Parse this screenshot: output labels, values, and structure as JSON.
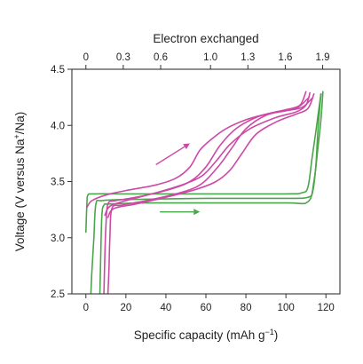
{
  "chart_data": {
    "type": "line",
    "x_axis": {
      "title_text": "Specific capacity (mAh g",
      "title_sup": "−1",
      "title_close": ")",
      "range": [
        -7,
        127
      ],
      "ticks": [
        0,
        20,
        40,
        60,
        80,
        100,
        120
      ],
      "tick_labels": [
        "0",
        "20",
        "40",
        "60",
        "80",
        "100",
        "120"
      ]
    },
    "x2_axis": {
      "title": "Electron exchanged",
      "ticks": [
        0,
        0.3,
        0.6,
        1.0,
        1.3,
        1.6,
        1.9
      ],
      "tick_labels": [
        "0",
        "0.3",
        "0.6",
        "1.0",
        "1.3",
        "1.6",
        "1.9"
      ],
      "capacity_per_electron": 62.3
    },
    "y_axis": {
      "title_text": "Voltage (V versus Na",
      "title_sup": "+",
      "title_close": "/Na)",
      "range": [
        2.5,
        4.5
      ],
      "ticks": [
        2.5,
        3.0,
        3.5,
        4.0,
        4.5
      ],
      "tick_labels": [
        "2.5",
        "3.0",
        "3.5",
        "4.0",
        "4.5"
      ]
    },
    "colors": {
      "green": "#4aa64a",
      "magenta": "#cc4aa6"
    },
    "series": [
      {
        "color": "green",
        "points": [
          [
            0,
            3.05
          ],
          [
            0.5,
            3.3
          ],
          [
            1,
            3.38
          ],
          [
            4,
            3.39
          ],
          [
            20,
            3.39
          ],
          [
            60,
            3.39
          ],
          [
            100,
            3.39
          ],
          [
            108,
            3.4
          ],
          [
            111,
            3.45
          ],
          [
            113,
            3.7
          ],
          [
            115,
            3.95
          ],
          [
            116.5,
            4.15
          ],
          [
            117.5,
            4.28
          ]
        ]
      },
      {
        "color": "green",
        "points": [
          [
            117.5,
            4.28
          ],
          [
            116,
            3.95
          ],
          [
            115,
            3.65
          ],
          [
            113.5,
            3.42
          ],
          [
            111,
            3.36
          ],
          [
            100,
            3.35
          ],
          [
            60,
            3.35
          ],
          [
            20,
            3.34
          ],
          [
            8,
            3.33
          ],
          [
            5,
            3.3
          ],
          [
            4,
            3.0
          ],
          [
            3,
            2.7
          ],
          [
            2.5,
            2.5
          ]
        ]
      },
      {
        "color": "green",
        "points": [
          [
            7,
            2.5
          ],
          [
            7.5,
            2.9
          ],
          [
            8,
            3.2
          ],
          [
            9,
            3.29
          ],
          [
            12,
            3.3
          ],
          [
            30,
            3.31
          ],
          [
            60,
            3.31
          ],
          [
            100,
            3.31
          ],
          [
            111,
            3.32
          ],
          [
            114,
            3.5
          ],
          [
            116,
            3.8
          ],
          [
            117.5,
            4.05
          ],
          [
            118.5,
            4.3
          ]
        ]
      },
      {
        "color": "magenta",
        "points": [
          [
            0.5,
            3.27
          ],
          [
            3,
            3.33
          ],
          [
            10,
            3.38
          ],
          [
            20,
            3.42
          ],
          [
            35,
            3.47
          ],
          [
            45,
            3.53
          ],
          [
            52,
            3.63
          ],
          [
            57,
            3.78
          ],
          [
            63,
            3.88
          ],
          [
            70,
            3.97
          ],
          [
            80,
            4.05
          ],
          [
            90,
            4.1
          ],
          [
            100,
            4.14
          ],
          [
            107,
            4.18
          ],
          [
            110,
            4.3
          ]
        ]
      },
      {
        "color": "magenta",
        "points": [
          [
            111,
            4.24
          ],
          [
            105,
            4.15
          ],
          [
            95,
            4.12
          ],
          [
            85,
            4.07
          ],
          [
            75,
            3.97
          ],
          [
            67,
            3.82
          ],
          [
            60,
            3.63
          ],
          [
            52,
            3.5
          ],
          [
            40,
            3.42
          ],
          [
            25,
            3.36
          ],
          [
            15,
            3.33
          ],
          [
            11,
            3.3
          ],
          [
            10,
            3.1
          ],
          [
            9.5,
            2.85
          ],
          [
            9,
            2.5
          ]
        ]
      },
      {
        "color": "magenta",
        "points": [
          [
            9.5,
            3.2
          ],
          [
            12,
            3.28
          ],
          [
            20,
            3.33
          ],
          [
            35,
            3.4
          ],
          [
            48,
            3.47
          ],
          [
            58,
            3.55
          ],
          [
            65,
            3.68
          ],
          [
            72,
            3.83
          ],
          [
            82,
            3.97
          ],
          [
            95,
            4.07
          ],
          [
            105,
            4.12
          ],
          [
            110,
            4.18
          ],
          [
            112,
            4.29
          ]
        ]
      },
      {
        "color": "magenta",
        "points": [
          [
            113,
            4.24
          ],
          [
            108,
            4.16
          ],
          [
            100,
            4.13
          ],
          [
            90,
            4.09
          ],
          [
            80,
            3.97
          ],
          [
            73,
            3.8
          ],
          [
            66,
            3.63
          ],
          [
            57,
            3.47
          ],
          [
            45,
            3.39
          ],
          [
            30,
            3.33
          ],
          [
            18,
            3.29
          ],
          [
            13,
            3.26
          ],
          [
            12,
            3.0
          ],
          [
            11.5,
            2.7
          ],
          [
            11,
            2.5
          ]
        ]
      },
      {
        "color": "magenta",
        "points": [
          [
            11,
            3.18
          ],
          [
            14,
            3.26
          ],
          [
            25,
            3.3
          ],
          [
            40,
            3.36
          ],
          [
            55,
            3.43
          ],
          [
            65,
            3.5
          ],
          [
            72,
            3.6
          ],
          [
            78,
            3.75
          ],
          [
            85,
            3.92
          ],
          [
            95,
            4.03
          ],
          [
            105,
            4.1
          ],
          [
            111,
            4.15
          ],
          [
            114,
            4.28
          ]
        ]
      }
    ],
    "annotations": [
      {
        "type": "arrow",
        "color": "magenta",
        "from": [
          35,
          3.65
        ],
        "to": [
          52,
          3.84
        ]
      },
      {
        "type": "arrow",
        "color": "green",
        "from": [
          37,
          3.23
        ],
        "to": [
          57,
          3.23
        ]
      }
    ],
    "grid": false,
    "legend": "none"
  }
}
